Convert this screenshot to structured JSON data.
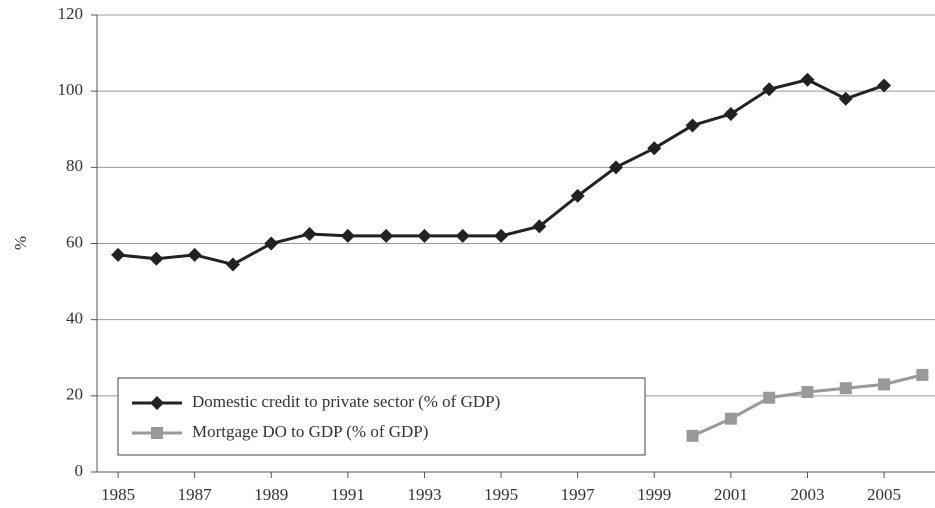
{
  "chart_data": {
    "type": "line",
    "y_label": "%",
    "x": [
      1985,
      1986,
      1987,
      1988,
      1989,
      1990,
      1991,
      1992,
      1993,
      1994,
      1995,
      1996,
      1997,
      1998,
      1999,
      2000,
      2001,
      2002,
      2003,
      2004,
      2005,
      2006
    ],
    "series": [
      {
        "name": "Domestic credit to private sector (% of GDP)",
        "color": "#222222",
        "marker": "diamond",
        "values": [
          57,
          56,
          57,
          54.5,
          60,
          62.5,
          62,
          62,
          62,
          62,
          62,
          64.5,
          72.5,
          80,
          85,
          91,
          94,
          100.5,
          103,
          98,
          101.5,
          null
        ]
      },
      {
        "name": "Mortgage DO to GDP (% of GDP)",
        "color": "#999999",
        "marker": "square",
        "values": [
          null,
          null,
          null,
          null,
          null,
          null,
          null,
          null,
          null,
          null,
          null,
          null,
          null,
          null,
          null,
          9.5,
          14,
          19.5,
          21,
          22,
          23,
          25.5
        ]
      }
    ],
    "xlim": [
      1984.45,
      2006.33
    ],
    "xticks": [
      1985,
      1987,
      1989,
      1991,
      1993,
      1995,
      1997,
      1999,
      2001,
      2003,
      2005
    ],
    "ylim": [
      0,
      120
    ],
    "yticks": [
      0,
      20,
      40,
      60,
      80,
      100,
      120
    ],
    "grid": true
  }
}
